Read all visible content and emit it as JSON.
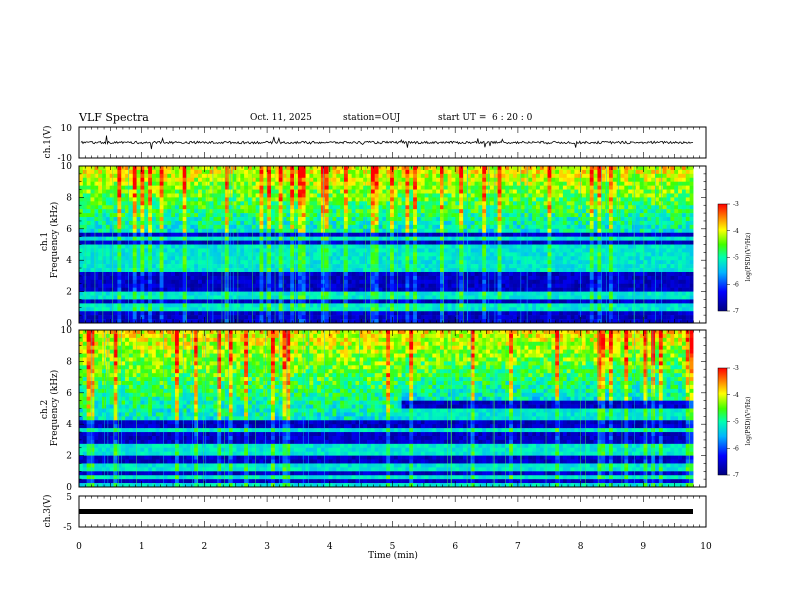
{
  "header": {
    "title": "VLF Spectra",
    "date": "Oct. 11, 2025",
    "station": "station=OUJ",
    "start_ut_label": "start UT =",
    "start_ut_value": "6 : 20 : 0"
  },
  "chart_data": [
    {
      "type": "line",
      "panel": "ch1-waveform",
      "ylabel": "ch.1(V)",
      "ylim": [
        -10,
        10
      ],
      "ytick_labels": [
        "10",
        "-10"
      ],
      "xlim": [
        0,
        10
      ],
      "baseline": 0,
      "note_values": "noisy trace around ~0 V with spikes up to ~+/-5 V"
    },
    {
      "type": "heatmap",
      "panel": "ch1-spectrogram",
      "ylabel": "ch.1 Frequency (kHz)",
      "ylim": [
        0,
        10
      ],
      "ytick_labels": [
        "0",
        "2",
        "4",
        "6",
        "8",
        "10"
      ],
      "xlim": [
        0,
        9.8
      ],
      "colorbar": {
        "label": "log(PSD)(V²/Hz)",
        "range": [
          -7,
          -3
        ],
        "tick_labels": [
          "-3",
          "-4",
          "-5",
          "-6",
          "-7"
        ]
      },
      "cutoff_khz": [
        5.8,
        5.8
      ]
    },
    {
      "type": "heatmap",
      "panel": "ch2-spectrogram",
      "ylabel": "ch.2 Frequency (kHz)",
      "ylim": [
        0,
        10
      ],
      "ytick_labels": [
        "0",
        "2",
        "4",
        "6",
        "8",
        "10"
      ],
      "xlim": [
        0,
        9.8
      ],
      "colorbar": {
        "label": "log(PSD)(V²/Hz)",
        "range": [
          -7,
          -3
        ],
        "tick_labels": [
          "-3",
          "-4",
          "-5",
          "-6",
          "-7"
        ]
      },
      "cutoff_khz": [
        4.3,
        5.5
      ]
    },
    {
      "type": "line",
      "panel": "ch3-waveform",
      "ylabel": "ch.3(V)",
      "ylim": [
        -5,
        5
      ],
      "ytick_labels": [
        "5",
        "-5"
      ],
      "xlim": [
        0,
        10
      ],
      "baseline": -1.2
    }
  ],
  "xaxis": {
    "label": "Time (min)",
    "tick_labels": [
      "0",
      "1",
      "2",
      "3",
      "4",
      "5",
      "6",
      "7",
      "8",
      "9",
      "10"
    ]
  }
}
